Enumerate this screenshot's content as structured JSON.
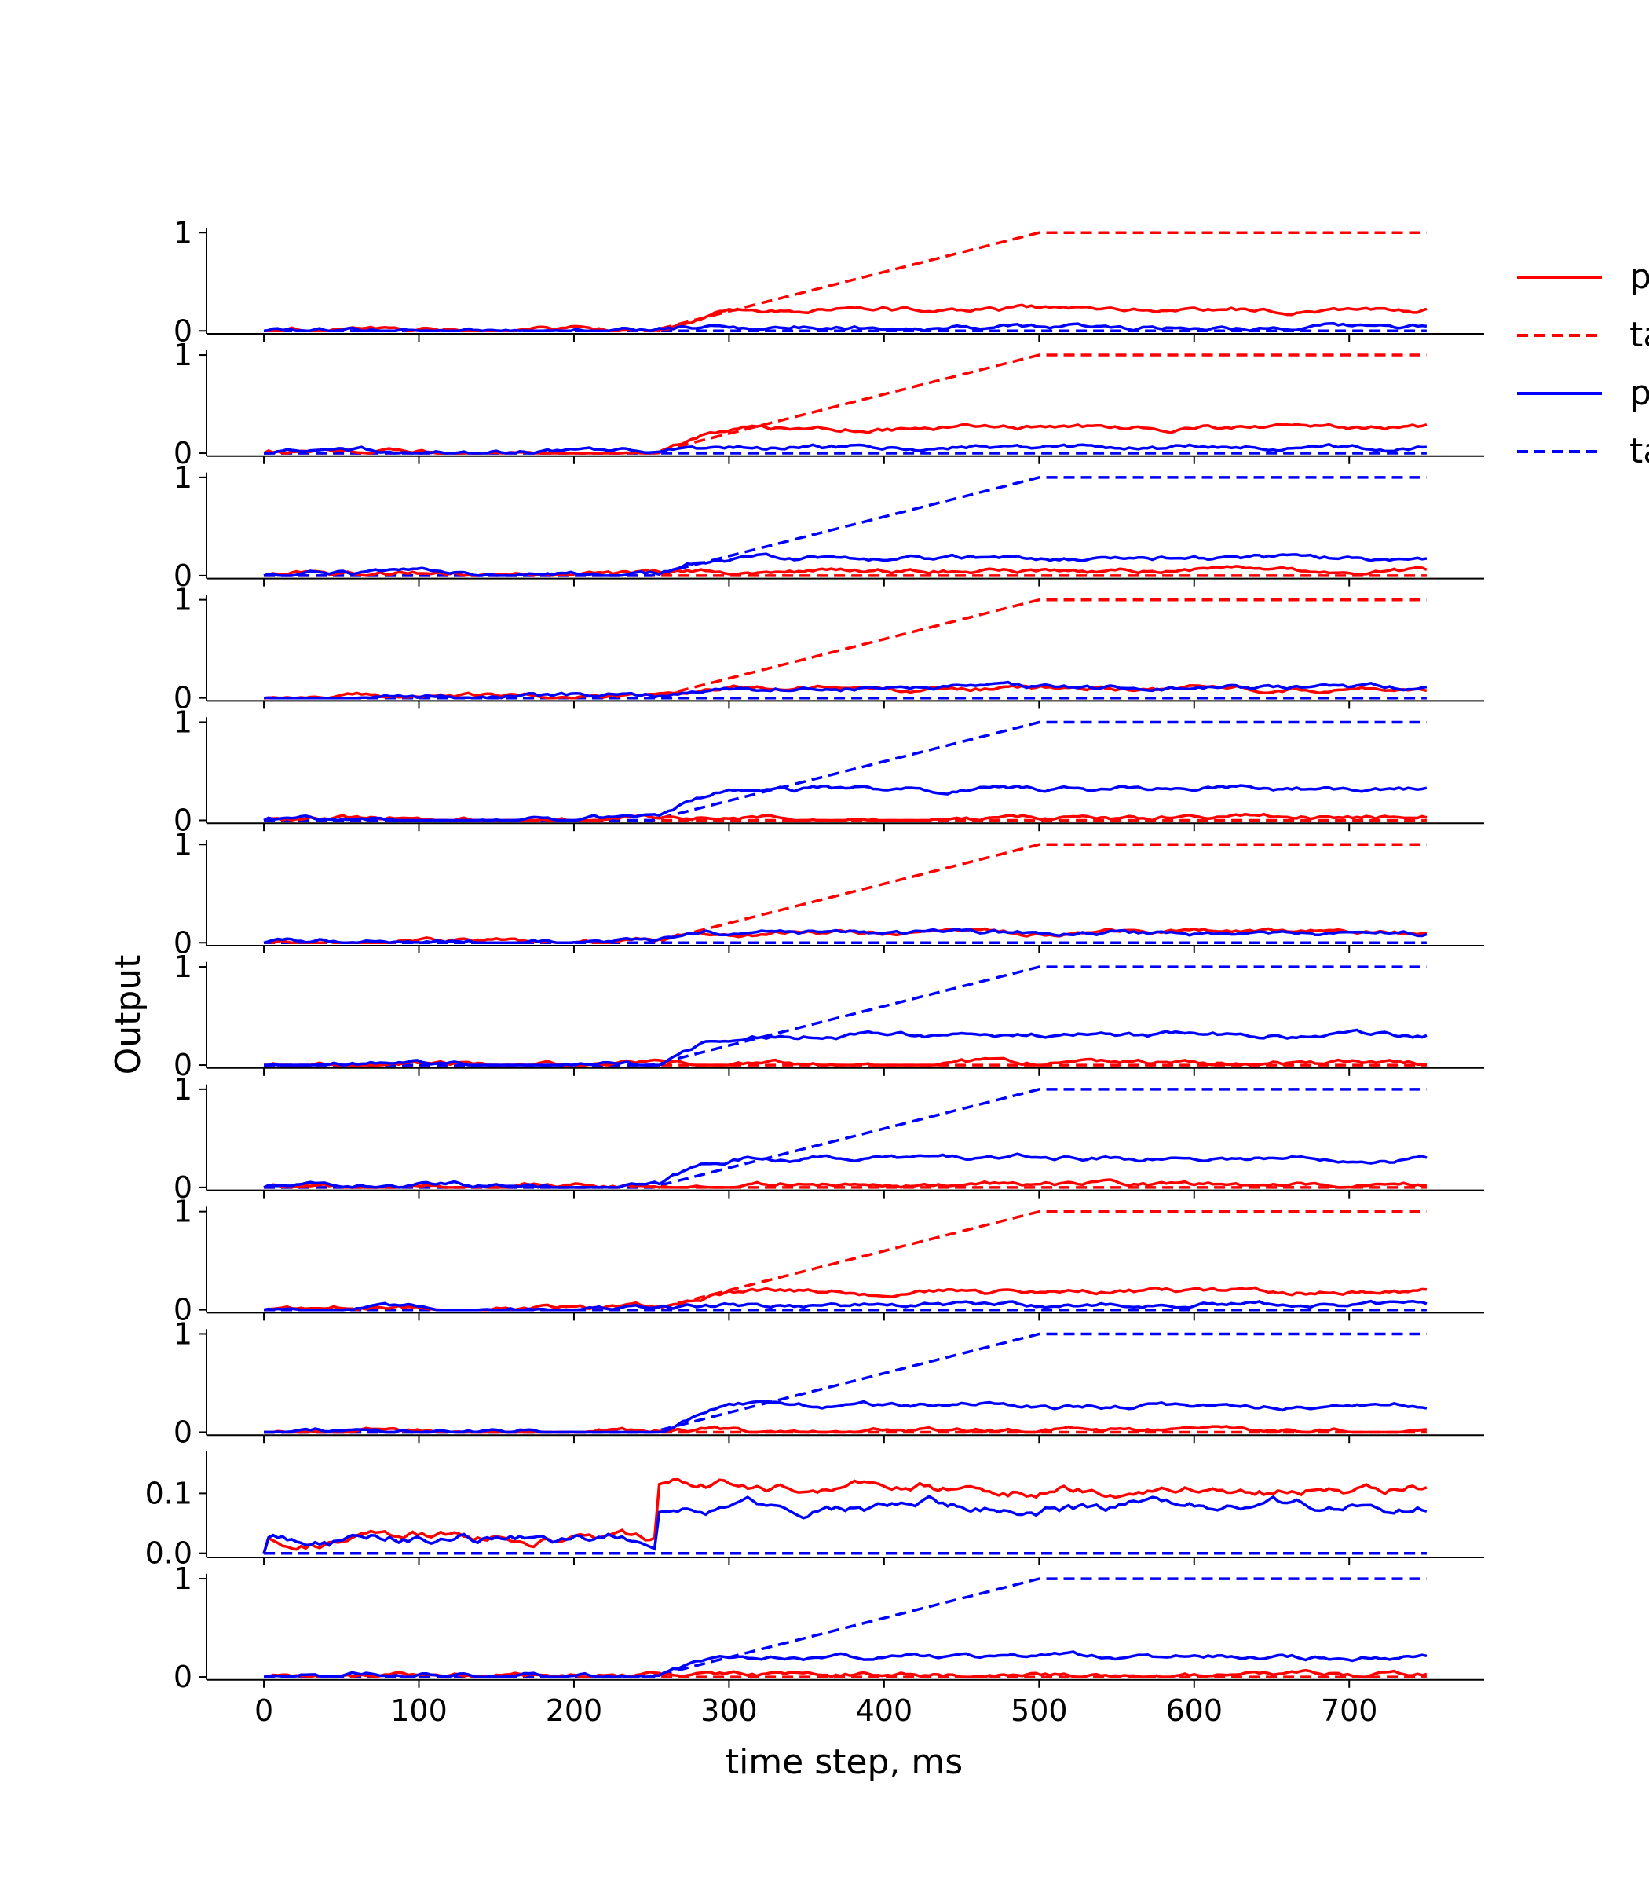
{
  "chart_data": {
    "type": "line",
    "xlabel": "time step, ms",
    "ylabel": "Output",
    "xlim": [
      -37,
      787
    ],
    "x_ticks": [
      0,
      100,
      200,
      300,
      400,
      500,
      600,
      700
    ],
    "x_tick_labels": [
      "0",
      "100",
      "200",
      "300",
      "400",
      "500",
      "600",
      "700"
    ],
    "legend": {
      "placement": "upper-right-outside",
      "entries": [
        {
          "label": "p",
          "color": "#ff0000",
          "style": "solid"
        },
        {
          "label": "ta",
          "color": "#ff0000",
          "style": "dashed"
        },
        {
          "label": "p",
          "color": "#0000ff",
          "style": "solid"
        },
        {
          "label": "ta",
          "color": "#0000ff",
          "style": "dashed"
        }
      ]
    },
    "colors": {
      "red": "#ff0000",
      "blue": "#0000ff"
    },
    "target_shape": {
      "onset": 250,
      "plateau_start": 500,
      "end": 750
    },
    "panels": [
      {
        "ylim": [
          -0.03,
          1.05
        ],
        "y_ticks": [
          0,
          1
        ],
        "y_tick_labels": [
          "0",
          "1"
        ],
        "target": "red",
        "red_level": 0.22,
        "blue_level": 0.04,
        "seed": 11
      },
      {
        "ylim": [
          -0.03,
          1.05
        ],
        "y_ticks": [
          0,
          1
        ],
        "y_tick_labels": [
          "0",
          "1"
        ],
        "target": "red",
        "red_level": 0.26,
        "blue_level": 0.06,
        "seed": 12
      },
      {
        "ylim": [
          -0.03,
          1.05
        ],
        "y_ticks": [
          0,
          1
        ],
        "y_tick_labels": [
          "0",
          "1"
        ],
        "target": "blue",
        "red_level": 0.05,
        "blue_level": 0.18,
        "seed": 13
      },
      {
        "ylim": [
          -0.03,
          1.05
        ],
        "y_ticks": [
          0,
          1
        ],
        "y_tick_labels": [
          "0",
          "1"
        ],
        "target": "red",
        "red_level": 0.1,
        "blue_level": 0.1,
        "seed": 14
      },
      {
        "ylim": [
          -0.03,
          1.05
        ],
        "y_ticks": [
          0,
          1
        ],
        "y_tick_labels": [
          "0",
          "1"
        ],
        "target": "blue",
        "red_level": 0.03,
        "blue_level": 0.32,
        "seed": 15
      },
      {
        "ylim": [
          -0.03,
          1.05
        ],
        "y_ticks": [
          0,
          1
        ],
        "y_tick_labels": [
          "0",
          "1"
        ],
        "target": "red",
        "red_level": 0.11,
        "blue_level": 0.09,
        "seed": 16
      },
      {
        "ylim": [
          -0.03,
          1.05
        ],
        "y_ticks": [
          0,
          1
        ],
        "y_tick_labels": [
          "0",
          "1"
        ],
        "target": "blue",
        "red_level": 0.02,
        "blue_level": 0.3,
        "seed": 17
      },
      {
        "ylim": [
          -0.03,
          1.05
        ],
        "y_ticks": [
          0,
          1
        ],
        "y_tick_labels": [
          "0",
          "1"
        ],
        "target": "blue",
        "red_level": 0.03,
        "blue_level": 0.3,
        "seed": 18
      },
      {
        "ylim": [
          -0.03,
          1.05
        ],
        "y_ticks": [
          0,
          1
        ],
        "y_tick_labels": [
          "0",
          "1"
        ],
        "target": "red",
        "red_level": 0.18,
        "blue_level": 0.05,
        "seed": 19
      },
      {
        "ylim": [
          -0.03,
          1.05
        ],
        "y_ticks": [
          0,
          1
        ],
        "y_tick_labels": [
          "0",
          "1"
        ],
        "target": "blue",
        "red_level": 0.02,
        "blue_level": 0.27,
        "seed": 20
      },
      {
        "ylim": [
          -0.007,
          0.17
        ],
        "y_ticks": [
          0.0,
          0.1
        ],
        "y_tick_labels": [
          "0.0",
          "0.1"
        ],
        "target": "none",
        "red_level": 0.11,
        "blue_level": 0.08,
        "seed": 21
      },
      {
        "ylim": [
          -0.03,
          1.05
        ],
        "y_ticks": [
          0,
          1
        ],
        "y_tick_labels": [
          "0",
          "1"
        ],
        "target": "blue",
        "red_level": 0.02,
        "blue_level": 0.2,
        "seed": 22
      }
    ]
  }
}
